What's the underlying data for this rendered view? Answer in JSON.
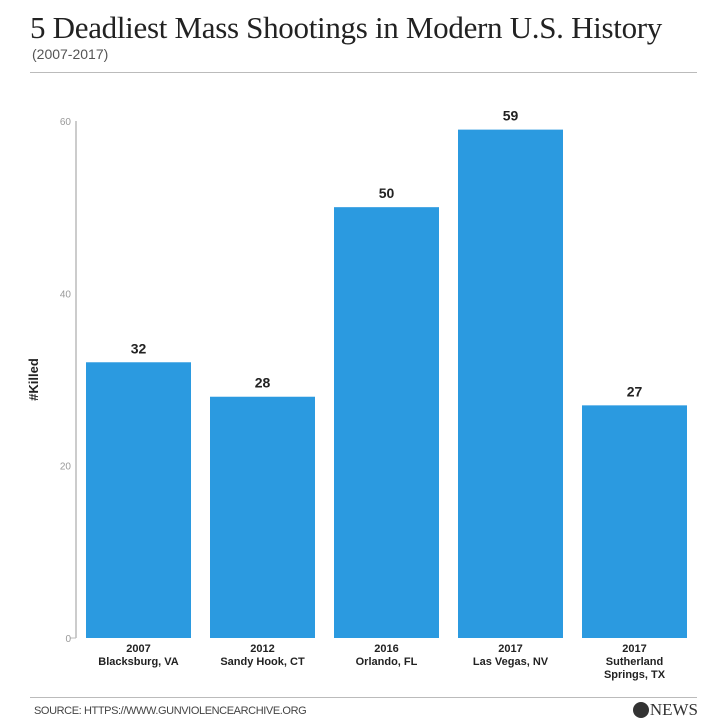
{
  "header": {
    "title": "5 Deadliest Mass Shootings in Modern U.S. History",
    "subtitle": "(2007-2017)"
  },
  "footer": {
    "source": "SOURCE: HTTPS://WWW.GUNVIOLENCEARCHIVE.ORG",
    "logo": "abc NEWS"
  },
  "chart_data": {
    "type": "bar",
    "ylabel": "#Killed",
    "ylim": [
      0,
      60
    ],
    "yticks": [
      0,
      20,
      40,
      60
    ],
    "categories": [
      [
        "2007",
        "Blacksburg, VA"
      ],
      [
        "2012",
        "Sandy Hook, CT"
      ],
      [
        "2016",
        "Orlando, FL"
      ],
      [
        "2017",
        "Las Vegas, NV"
      ],
      [
        "2017",
        "Sutherland",
        "Springs, TX"
      ]
    ],
    "values": [
      32,
      28,
      50,
      59,
      27
    ],
    "bar_color": "#2b9ae0",
    "grid": false
  }
}
